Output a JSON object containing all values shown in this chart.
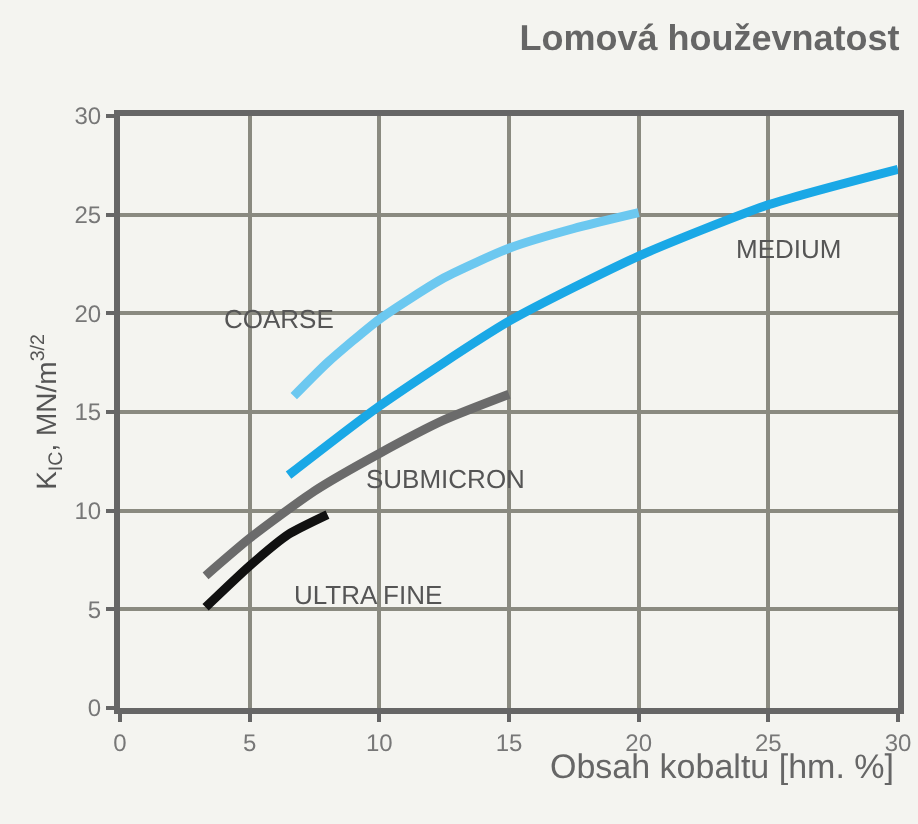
{
  "chart_data": {
    "type": "line",
    "title": "Lomová houževnatost",
    "xlabel": "Obsah kobaltu [hm. %]",
    "ylabel": "K$_{IC}$, MN/m$^{3/2}$",
    "series": [
      {
        "name": "COARSE",
        "color": "#6cc8f0",
        "x": [
          6.7,
          8,
          10,
          12.5,
          15,
          17.5,
          20
        ],
        "values": [
          15.8,
          17.5,
          19.7,
          21.8,
          23.3,
          24.3,
          25.1
        ]
      },
      {
        "name": "MEDIUM",
        "color": "#1aa8e6",
        "x": [
          6.5,
          10,
          15,
          20,
          25,
          30
        ],
        "values": [
          11.8,
          15.3,
          19.6,
          22.9,
          25.5,
          27.3
        ]
      },
      {
        "name": "SUBMICRON",
        "color": "#6b6b6b",
        "x": [
          3.3,
          5,
          7.5,
          10,
          12.5,
          15
        ],
        "values": [
          6.7,
          8.6,
          11,
          12.9,
          14.6,
          15.9
        ]
      },
      {
        "name": "ULTRA FINE",
        "color": "#111111",
        "x": [
          3.3,
          5,
          6.5,
          8
        ],
        "values": [
          5.1,
          7.2,
          8.8,
          9.8
        ]
      }
    ],
    "xlim": [
      0,
      30
    ],
    "xticks": [
      0,
      5,
      10,
      15,
      20,
      25,
      30
    ],
    "ylim": [
      0,
      30
    ],
    "yticks": [
      0,
      5,
      10,
      15,
      20,
      25,
      30
    ],
    "grid": true,
    "legend": false,
    "marker": "none",
    "line_style": "solid"
  }
}
